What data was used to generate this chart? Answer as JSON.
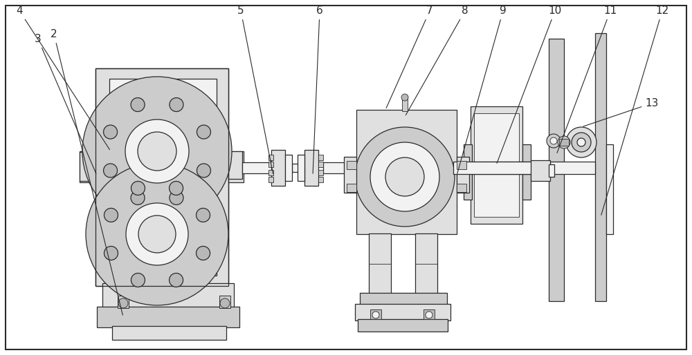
{
  "bg_color": "#ffffff",
  "line_color": "#2a2a2a",
  "lw": 0.9,
  "fig_w": 10.0,
  "fig_h": 5.14,
  "dpi": 100
}
